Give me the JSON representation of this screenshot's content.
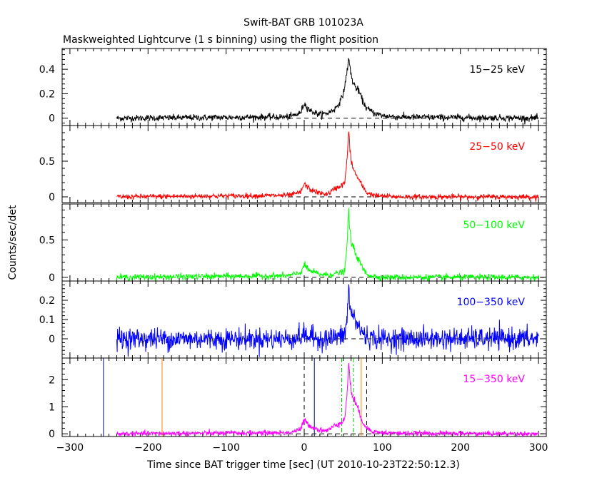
{
  "title": "Swift-BAT GRB 101023A",
  "subtitle": "Maskweighted Lightcurve (1 s binning) using the flight position",
  "ylabel": "Counts/sec/det",
  "xlabel": "Time since BAT trigger time [sec] (UT 2010-10-23T22:50:12.3)",
  "chart_data": [
    {
      "type": "line",
      "band_label": "15−25 keV",
      "color": "#000000",
      "xlim": [
        -310,
        310
      ],
      "ylim": [
        -0.06,
        0.57
      ],
      "yticks": [
        0,
        0.2,
        0.4
      ],
      "ytick_labels": [
        "0",
        "0.2",
        "0.4"
      ],
      "noise_sigma": 0.013,
      "baseline": 0,
      "x": [
        -240,
        -20,
        -5,
        0,
        8,
        20,
        30,
        40,
        48,
        52,
        55,
        57,
        58,
        60,
        62,
        65,
        70,
        75,
        80,
        90,
        100,
        120,
        300
      ],
      "values": [
        0.0,
        0.01,
        0.04,
        0.12,
        0.06,
        0.03,
        0.04,
        0.08,
        0.16,
        0.26,
        0.4,
        0.48,
        0.44,
        0.36,
        0.3,
        0.26,
        0.22,
        0.14,
        0.08,
        0.04,
        0.02,
        0.01,
        0.0
      ]
    },
    {
      "type": "line",
      "band_label": "25−50 keV",
      "color": "#ff0000",
      "xlim": [
        -310,
        310
      ],
      "ylim": [
        -0.08,
        1.0
      ],
      "yticks": [
        0,
        0.5
      ],
      "ytick_labels": [
        "0",
        "0.5"
      ],
      "noise_sigma": 0.018,
      "baseline": 0,
      "x": [
        -240,
        -20,
        -5,
        0,
        8,
        20,
        30,
        40,
        48,
        52,
        55,
        57,
        58,
        60,
        62,
        65,
        70,
        75,
        80,
        90,
        100,
        120,
        300
      ],
      "values": [
        0.0,
        0.02,
        0.06,
        0.18,
        0.1,
        0.05,
        0.04,
        0.12,
        0.16,
        0.2,
        0.55,
        0.92,
        0.75,
        0.52,
        0.42,
        0.34,
        0.24,
        0.14,
        0.06,
        0.02,
        0.01,
        0.0,
        0.0
      ]
    },
    {
      "type": "line",
      "band_label": "50−100 keV",
      "color": "#00ff00",
      "xlim": [
        -310,
        310
      ],
      "ylim": [
        -0.05,
        0.98
      ],
      "yticks": [
        0,
        0.5
      ],
      "ytick_labels": [
        "0",
        "0.5"
      ],
      "noise_sigma": 0.02,
      "baseline": 0,
      "x": [
        -240,
        -20,
        -5,
        0,
        8,
        20,
        30,
        40,
        48,
        52,
        55,
        57,
        58,
        60,
        62,
        65,
        70,
        75,
        80,
        90,
        100,
        120,
        300
      ],
      "values": [
        0.0,
        0.02,
        0.06,
        0.16,
        0.08,
        0.04,
        0.03,
        0.05,
        0.06,
        0.09,
        0.45,
        0.92,
        0.68,
        0.48,
        0.42,
        0.34,
        0.22,
        0.12,
        0.04,
        0.01,
        0.0,
        0.0,
        0.0
      ]
    },
    {
      "type": "line",
      "band_label": "100−350 keV",
      "color": "#0000ff",
      "xlim": [
        -310,
        310
      ],
      "ylim": [
        -0.1,
        0.3
      ],
      "yticks": [
        0,
        0.1,
        0.2
      ],
      "ytick_labels": [
        "0",
        "0.1",
        "0.2"
      ],
      "noise_sigma": 0.028,
      "baseline": 0,
      "x": [
        -240,
        -20,
        -5,
        0,
        8,
        20,
        30,
        40,
        48,
        52,
        55,
        57,
        58,
        60,
        62,
        65,
        70,
        75,
        80,
        90,
        100,
        120,
        300
      ],
      "values": [
        0.0,
        0.0,
        0.01,
        0.02,
        0.01,
        0.0,
        0.0,
        0.01,
        0.01,
        0.02,
        0.12,
        0.26,
        0.18,
        0.14,
        0.12,
        0.1,
        0.06,
        0.03,
        0.01,
        0.0,
        0.0,
        0.0,
        0.0
      ]
    },
    {
      "type": "line",
      "band_label": "15−350 keV",
      "color": "#ff00ff",
      "xlim": [
        -310,
        310
      ],
      "ylim": [
        -0.1,
        2.8
      ],
      "yticks": [
        0,
        1,
        2
      ],
      "ytick_labels": [
        "0",
        "1",
        "2"
      ],
      "noise_sigma": 0.045,
      "baseline": 0,
      "x": [
        -240,
        -20,
        -5,
        0,
        8,
        20,
        30,
        40,
        48,
        52,
        55,
        57,
        58,
        60,
        62,
        65,
        70,
        75,
        80,
        90,
        100,
        120,
        300
      ],
      "values": [
        0.0,
        0.04,
        0.15,
        0.5,
        0.28,
        0.14,
        0.12,
        0.32,
        0.45,
        0.55,
        1.55,
        2.7,
        2.15,
        1.6,
        1.4,
        1.2,
        0.8,
        0.45,
        0.2,
        0.08,
        0.04,
        0.02,
        0.0
      ],
      "vlines": [
        {
          "x": -257,
          "color": "#000080",
          "style": "solid"
        },
        {
          "x": -182,
          "color": "#ff8000",
          "style": "solid"
        },
        {
          "x": 0,
          "color": "#000000",
          "style": "dashed"
        },
        {
          "x": 13,
          "color": "#000080",
          "style": "solid"
        },
        {
          "x": 48,
          "color": "#00c000",
          "style": "dashdot"
        },
        {
          "x": 63,
          "color": "#00c000",
          "style": "dashdot"
        },
        {
          "x": 73,
          "color": "#ff8000",
          "style": "solid"
        },
        {
          "x": 80,
          "color": "#000000",
          "style": "dashed"
        }
      ]
    }
  ],
  "xaxis": {
    "ticks": [
      -300,
      -200,
      -100,
      0,
      100,
      200,
      300
    ],
    "tick_labels": [
      "−300",
      "−200",
      "−100",
      "0",
      "100",
      "200",
      "300"
    ]
  }
}
